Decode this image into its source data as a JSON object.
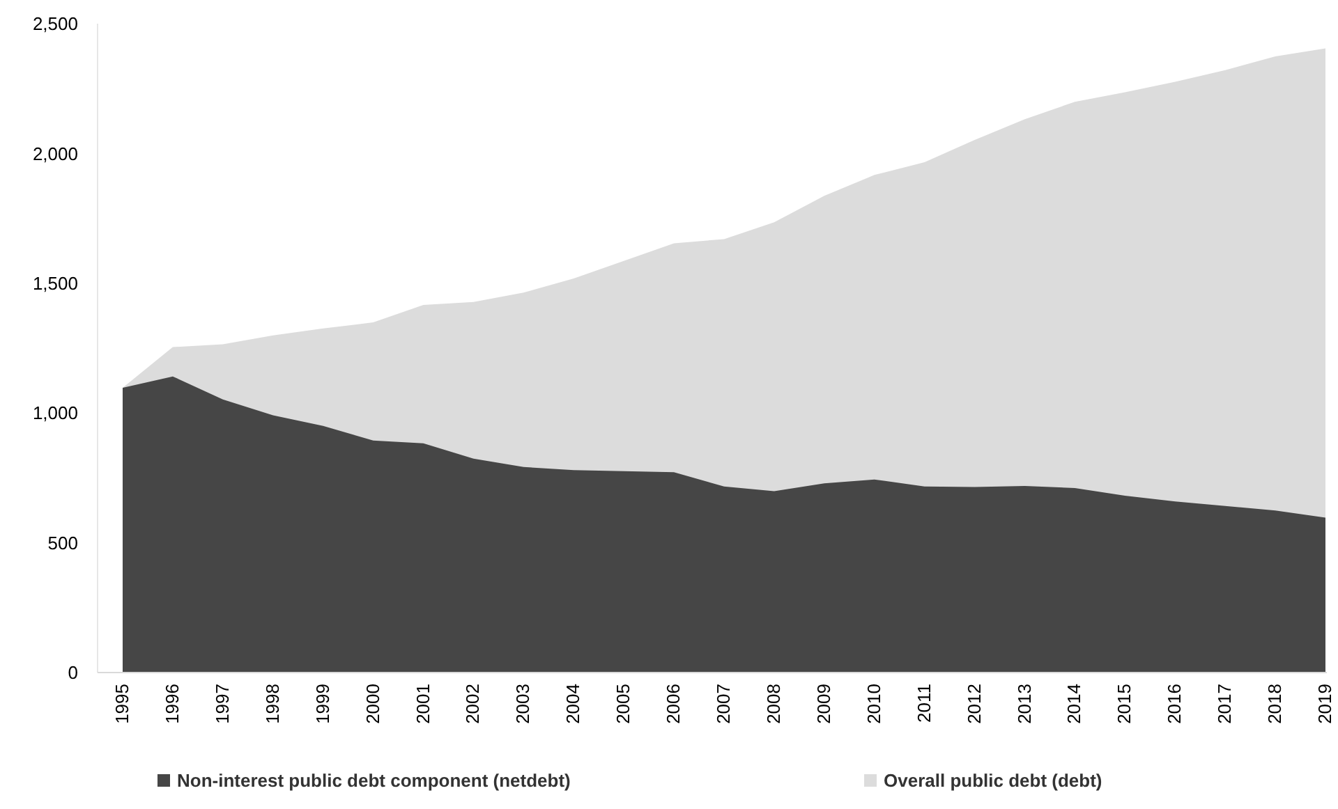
{
  "chart_data": {
    "type": "area",
    "categories": [
      "1995",
      "1996",
      "1997",
      "1998",
      "1999",
      "2000",
      "2001",
      "2002",
      "2003",
      "2004",
      "2005",
      "2006",
      "2007",
      "2008",
      "2009",
      "2010",
      "2011",
      "2012",
      "2013",
      "2014",
      "2015",
      "2016",
      "2017",
      "2018",
      "2019"
    ],
    "series": [
      {
        "name": "Non-interest public debt component (netdebt)",
        "color": "#464646",
        "values": [
          1097,
          1141,
          1052,
          991,
          950,
          894,
          883,
          824,
          792,
          780,
          776,
          772,
          717,
          699,
          729,
          744,
          717,
          715,
          719,
          711,
          681,
          659,
          642,
          624,
          597
        ]
      },
      {
        "name": "Overall public debt (debt)",
        "color": "#dcdcdc",
        "values": [
          1097,
          1254,
          1265,
          1299,
          1326,
          1349,
          1416,
          1428,
          1464,
          1518,
          1586,
          1654,
          1670,
          1735,
          1837,
          1917,
          1966,
          2052,
          2132,
          2199,
          2236,
          2276,
          2321,
          2374,
          2405
        ]
      }
    ],
    "ylim": [
      0,
      2500
    ],
    "yticks": [
      {
        "value": 0,
        "label": "0"
      },
      {
        "value": 500,
        "label": "500"
      },
      {
        "value": 1000,
        "label": "1,000"
      },
      {
        "value": 1500,
        "label": "1,500"
      },
      {
        "value": 2000,
        "label": "2,000"
      },
      {
        "value": 2500,
        "label": "2,500"
      }
    ],
    "grid": false,
    "legend": "bottom"
  }
}
